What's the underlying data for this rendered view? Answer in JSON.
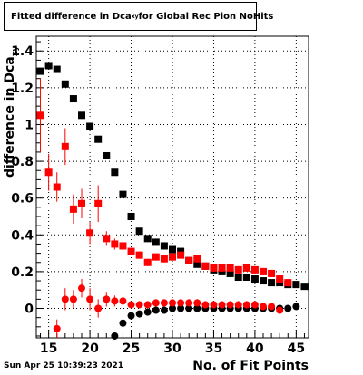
{
  "title": {
    "main": "Fitted difference in Dca",
    "subscript": "xy",
    "rest": " for Global Rec Pion NoHits"
  },
  "datestamp": "Sun Apr 25 10:39:23 2021",
  "chart_data": {
    "type": "scatter",
    "title": "Fitted difference in Dca_xy for Global Rec Pion NoHits",
    "xlabel": "No. of Fit Points",
    "ylabel": "difference in Dca_xy",
    "xlim": [
      13.5,
      46.5
    ],
    "ylim": [
      -0.16,
      1.48
    ],
    "x_ticks": [
      15,
      20,
      25,
      30,
      35,
      40,
      45
    ],
    "y_ticks": [
      0,
      0.2,
      0.4,
      0.6,
      0.8,
      1,
      1.2,
      1.4
    ],
    "y_tick_labels": [
      "0",
      "0.2",
      "0.4",
      "0.6",
      "0.8",
      "1",
      "1.2",
      "1.4"
    ],
    "grid": true,
    "series": [
      {
        "color": "#000000",
        "x": [
          14,
          15,
          16,
          17,
          18,
          19,
          20,
          21,
          22,
          23,
          24,
          25,
          26,
          27,
          28,
          29,
          30,
          31,
          32,
          33,
          34,
          35,
          36,
          37,
          38,
          39,
          40,
          41,
          42,
          43,
          44,
          45,
          46
        ],
        "y": [
          1.29,
          1.32,
          1.3,
          1.22,
          1.14,
          1.05,
          0.99,
          0.92,
          0.83,
          0.74,
          0.62,
          0.5,
          0.42,
          0.38,
          0.36,
          0.34,
          0.32,
          0.31,
          0.26,
          0.24,
          0.23,
          0.21,
          0.2,
          0.19,
          0.17,
          0.17,
          0.16,
          0.15,
          0.14,
          0.14,
          0.13,
          0.13,
          0.12
        ],
        "err": [
          0,
          0,
          0,
          0,
          0,
          0,
          0,
          0,
          0,
          0,
          0,
          0,
          0,
          0,
          0,
          0,
          0,
          0,
          0,
          0,
          0,
          0,
          0,
          0,
          0,
          0,
          0,
          0,
          0,
          0,
          0,
          0,
          0
        ]
      },
      {
        "color": "#ff0000",
        "x": [
          14,
          15,
          16,
          17,
          18,
          19,
          20,
          21,
          22,
          23,
          24,
          25,
          26,
          27,
          28,
          29,
          30,
          31,
          32,
          33,
          34,
          35,
          36,
          37,
          38,
          39,
          40,
          41,
          42,
          43,
          44
        ],
        "y": [
          1.05,
          0.74,
          0.66,
          0.88,
          0.54,
          0.57,
          0.41,
          0.57,
          0.38,
          0.35,
          0.34,
          0.31,
          0.29,
          0.25,
          0.28,
          0.27,
          0.28,
          0.29,
          0.26,
          0.27,
          0.23,
          0.22,
          0.22,
          0.22,
          0.21,
          0.22,
          0.21,
          0.2,
          0.19,
          0.16,
          0.14
        ],
        "err": [
          0.2,
          0.1,
          0.08,
          0.1,
          0.08,
          0.08,
          0.06,
          0.1,
          0.04,
          0.03,
          0.03,
          0.02,
          0.02,
          0.02,
          0.02,
          0.02,
          0.02,
          0.02,
          0.02,
          0.02,
          0.02,
          0.02,
          0.02,
          0.02,
          0.02,
          0.02,
          0.02,
          0.02,
          0.02,
          0.02,
          0.02
        ]
      },
      {
        "color": "#000000",
        "marker": "circle",
        "x": [
          23,
          24,
          25,
          26,
          27,
          28,
          29,
          30,
          31,
          32,
          33,
          34,
          35,
          36,
          37,
          38,
          39,
          40,
          41,
          42,
          43,
          44,
          45
        ],
        "y": [
          -0.15,
          -0.08,
          -0.04,
          -0.03,
          -0.02,
          -0.01,
          -0.01,
          0.0,
          0.0,
          0.0,
          0.0,
          0.0,
          0.0,
          0.0,
          0.0,
          0.0,
          0.0,
          0.0,
          0.0,
          0.0,
          0.0,
          0.0,
          0.01
        ]
      },
      {
        "color": "#ff0000",
        "marker": "circle",
        "x": [
          16,
          17,
          18,
          19,
          20,
          21,
          22,
          23,
          24,
          25,
          26,
          27,
          28,
          29,
          30,
          31,
          32,
          33,
          34,
          35,
          36,
          37,
          38,
          39,
          40,
          41,
          42,
          43
        ],
        "y": [
          -0.11,
          0.05,
          0.05,
          0.11,
          0.05,
          0.0,
          0.05,
          0.04,
          0.04,
          0.02,
          0.02,
          0.02,
          0.03,
          0.03,
          0.03,
          0.03,
          0.03,
          0.03,
          0.02,
          0.02,
          0.02,
          0.02,
          0.02,
          0.02,
          0.02,
          0.01,
          0.01,
          -0.01
        ],
        "err": [
          0.05,
          0.06,
          0.05,
          0.05,
          0.06,
          0.05,
          0.04,
          0.03,
          0.02,
          0.02,
          0.02,
          0.02,
          0.02,
          0.02,
          0.02,
          0.02,
          0.02,
          0.02,
          0.02,
          0.02,
          0.02,
          0.02,
          0.02,
          0.02,
          0.02,
          0.02,
          0.02,
          0.02
        ]
      }
    ]
  }
}
